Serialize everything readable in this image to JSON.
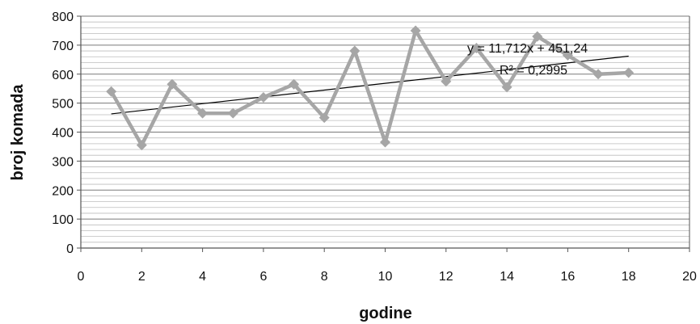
{
  "chart_data": {
    "type": "scatter",
    "title": "",
    "xlabel": "godine",
    "ylabel": "broj komada",
    "xlim": [
      0,
      20
    ],
    "ylim": [
      0,
      800
    ],
    "x_ticks": [
      "0",
      "2",
      "4",
      "6",
      "8",
      "10",
      "12",
      "14",
      "16",
      "18",
      "20"
    ],
    "y_ticks": [
      "0",
      "100",
      "200",
      "300",
      "400",
      "500",
      "600",
      "700",
      "800"
    ],
    "grid": true,
    "legend": "none",
    "series": [
      {
        "x": [
          1,
          2,
          3,
          4,
          5,
          6,
          7,
          8,
          9,
          10,
          11,
          12,
          13,
          14,
          15,
          16,
          17,
          18
        ],
        "y": [
          540,
          355,
          565,
          465,
          465,
          520,
          565,
          450,
          680,
          365,
          750,
          575,
          690,
          555,
          730,
          665,
          600,
          605
        ],
        "color": "#a6a6a6",
        "marker": "diamond",
        "line": true
      }
    ],
    "trendline": {
      "type": "linear",
      "slope": 11.712,
      "intercept": 451.24,
      "x_range": [
        1,
        18
      ],
      "color": "#000000"
    },
    "equation_text": "y = 11,712x + 451,24",
    "r2_text": "R² = 0,2995"
  }
}
